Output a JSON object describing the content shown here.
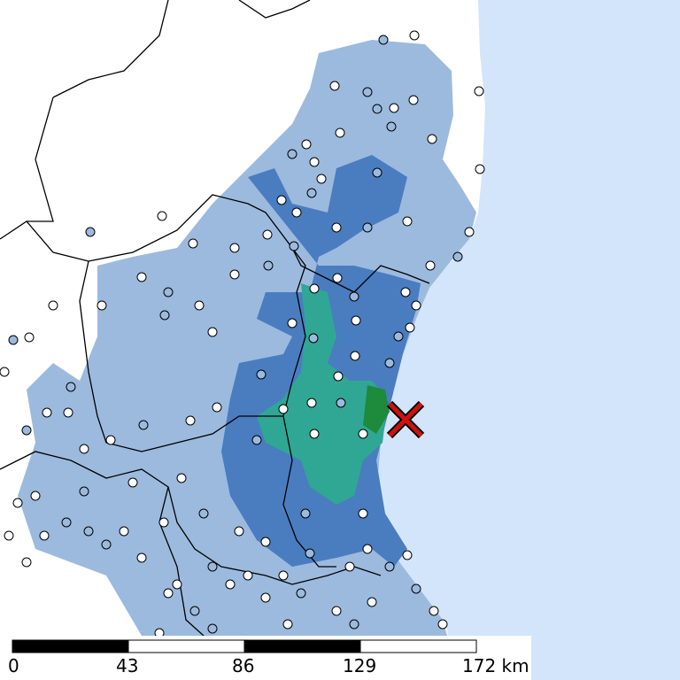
{
  "scale_bar": {
    "labels": [
      "0",
      "43",
      "86",
      "129",
      "172 km"
    ]
  }
}
